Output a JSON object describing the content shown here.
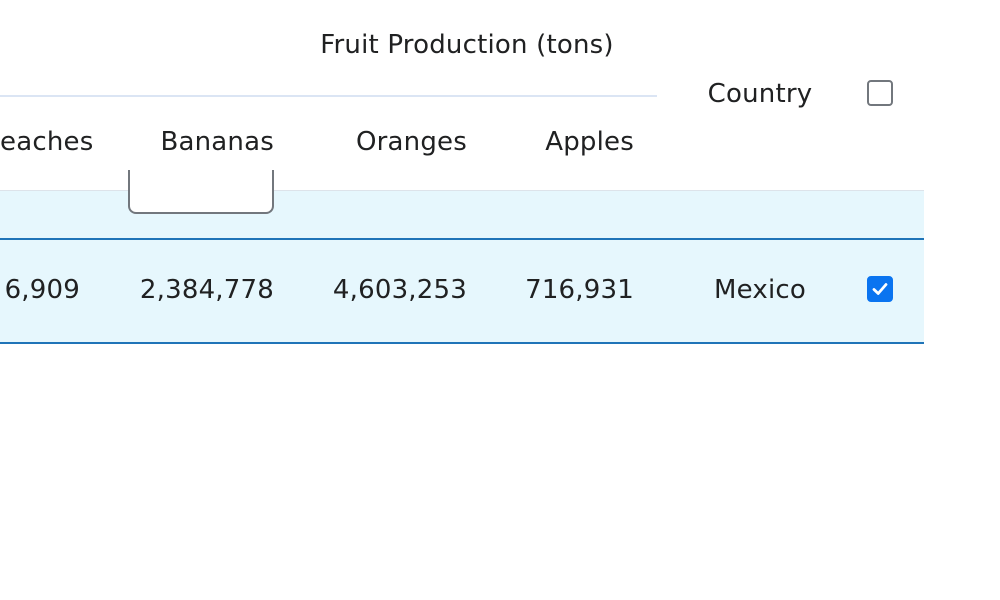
{
  "table": {
    "group_header": "Fruit Production (tons)",
    "columns": {
      "peaches": "eaches",
      "bananas": "Bananas",
      "oranges": "Oranges",
      "apples": "Apples",
      "country": "Country"
    },
    "selected_row": {
      "peaches": "6,909",
      "bananas": "2,384,778",
      "oranges": "4,603,253",
      "apples": "716,931",
      "country": "Mexico",
      "selected": true
    },
    "select_all_checked": false
  },
  "colors": {
    "selection_background": "#e6f7fd",
    "selection_border": "#1f74b8",
    "checkbox_checked": "#0a74f0"
  }
}
